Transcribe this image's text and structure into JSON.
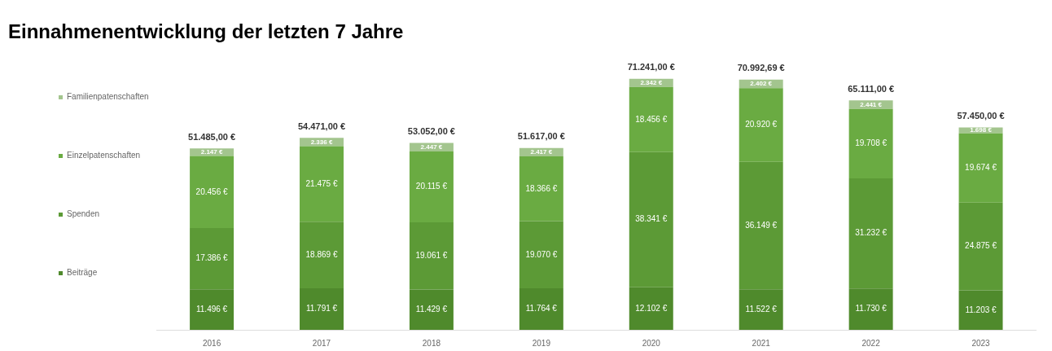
{
  "chart_data": {
    "type": "bar",
    "title": "Einnahmenentwicklung der letzten 7 Jahre",
    "stacked": true,
    "legend": "left",
    "tick_labels": "x",
    "categories": [
      "2016",
      "2017",
      "2018",
      "2019",
      "2020",
      "2021",
      "2022",
      "2023"
    ],
    "series": [
      {
        "name": "Beiträge",
        "color": "#4f8a2c",
        "values": [
          11496,
          11791,
          11429,
          11764,
          12102,
          11522,
          11730,
          11203
        ],
        "value_labels": [
          "11.496 €",
          "11.791 €",
          "11.429 €",
          "11.764 €",
          "12.102 €",
          "11.522 €",
          "11.730 €",
          "11.203 €"
        ]
      },
      {
        "name": "Spenden",
        "color": "#5c9a36",
        "values": [
          17386,
          18869,
          19061,
          19070,
          38341,
          36149,
          31232,
          24875
        ],
        "value_labels": [
          "17.386 €",
          "18.869 €",
          "19.061 €",
          "19.070 €",
          "38.341 €",
          "36.149 €",
          "31.232 €",
          "24.875 €"
        ]
      },
      {
        "name": "Einzelpatenschaften",
        "color": "#6aab42",
        "values": [
          20456,
          21475,
          20115,
          18366,
          18456,
          20920,
          19708,
          19674
        ],
        "value_labels": [
          "20.456 €",
          "21.475 €",
          "20.115 €",
          "18.366 €",
          "18.456 €",
          "20.920 €",
          "19.708 €",
          "19.674 €"
        ]
      },
      {
        "name": "Familienpatenschaften",
        "color": "#a3c58e",
        "values": [
          2147,
          2336,
          2447,
          2417,
          2342,
          2401.69,
          2441,
          1698
        ],
        "value_labels": [
          "2.147 €",
          "2.336 €",
          "2.447 €",
          "2.417 €",
          "2.342 €",
          "2.402 €",
          "2.441 €",
          "1.698 €"
        ]
      }
    ],
    "totals": [
      "51.485,00 €",
      "54.471,00 €",
      "53.052,00 €",
      "51.617,00 €",
      "71.241,00 €",
      "70.992,69 €",
      "65.111,00 €",
      "57.450,00 €"
    ]
  }
}
